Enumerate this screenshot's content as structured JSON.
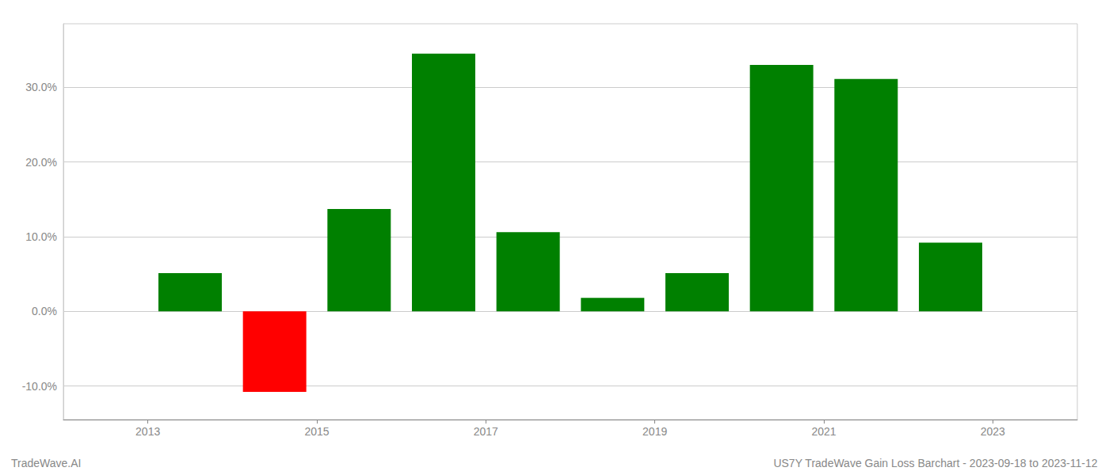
{
  "chart_data": {
    "type": "bar",
    "x": [
      2013.5,
      2014.5,
      2015.5,
      2016.5,
      2017.5,
      2018.5,
      2019.5,
      2020.5,
      2021.5,
      2022.5
    ],
    "values": [
      0.051,
      -0.108,
      0.137,
      0.345,
      0.106,
      0.018,
      0.051,
      0.33,
      0.311,
      0.092
    ],
    "colors": [
      "#008000",
      "#ff0000",
      "#008000",
      "#008000",
      "#008000",
      "#008000",
      "#008000",
      "#008000",
      "#008000",
      "#008000"
    ],
    "ylim": [
      -0.145,
      0.385
    ],
    "yticks": [
      {
        "value": -0.1,
        "label": "-10.0%"
      },
      {
        "value": 0.0,
        "label": "0.0%"
      },
      {
        "value": 0.1,
        "label": "10.0%"
      },
      {
        "value": 0.2,
        "label": "20.0%"
      },
      {
        "value": 0.3,
        "label": "30.0%"
      }
    ],
    "xlim": [
      2012.0,
      2024.0
    ],
    "xticks": [
      2013,
      2015,
      2017,
      2019,
      2021,
      2023
    ],
    "grid": true,
    "annotations": [
      "TradeWave.AI",
      "US7Y TradeWave Gain Loss Barchart - 2023-09-18 to 2023-11-12"
    ]
  }
}
